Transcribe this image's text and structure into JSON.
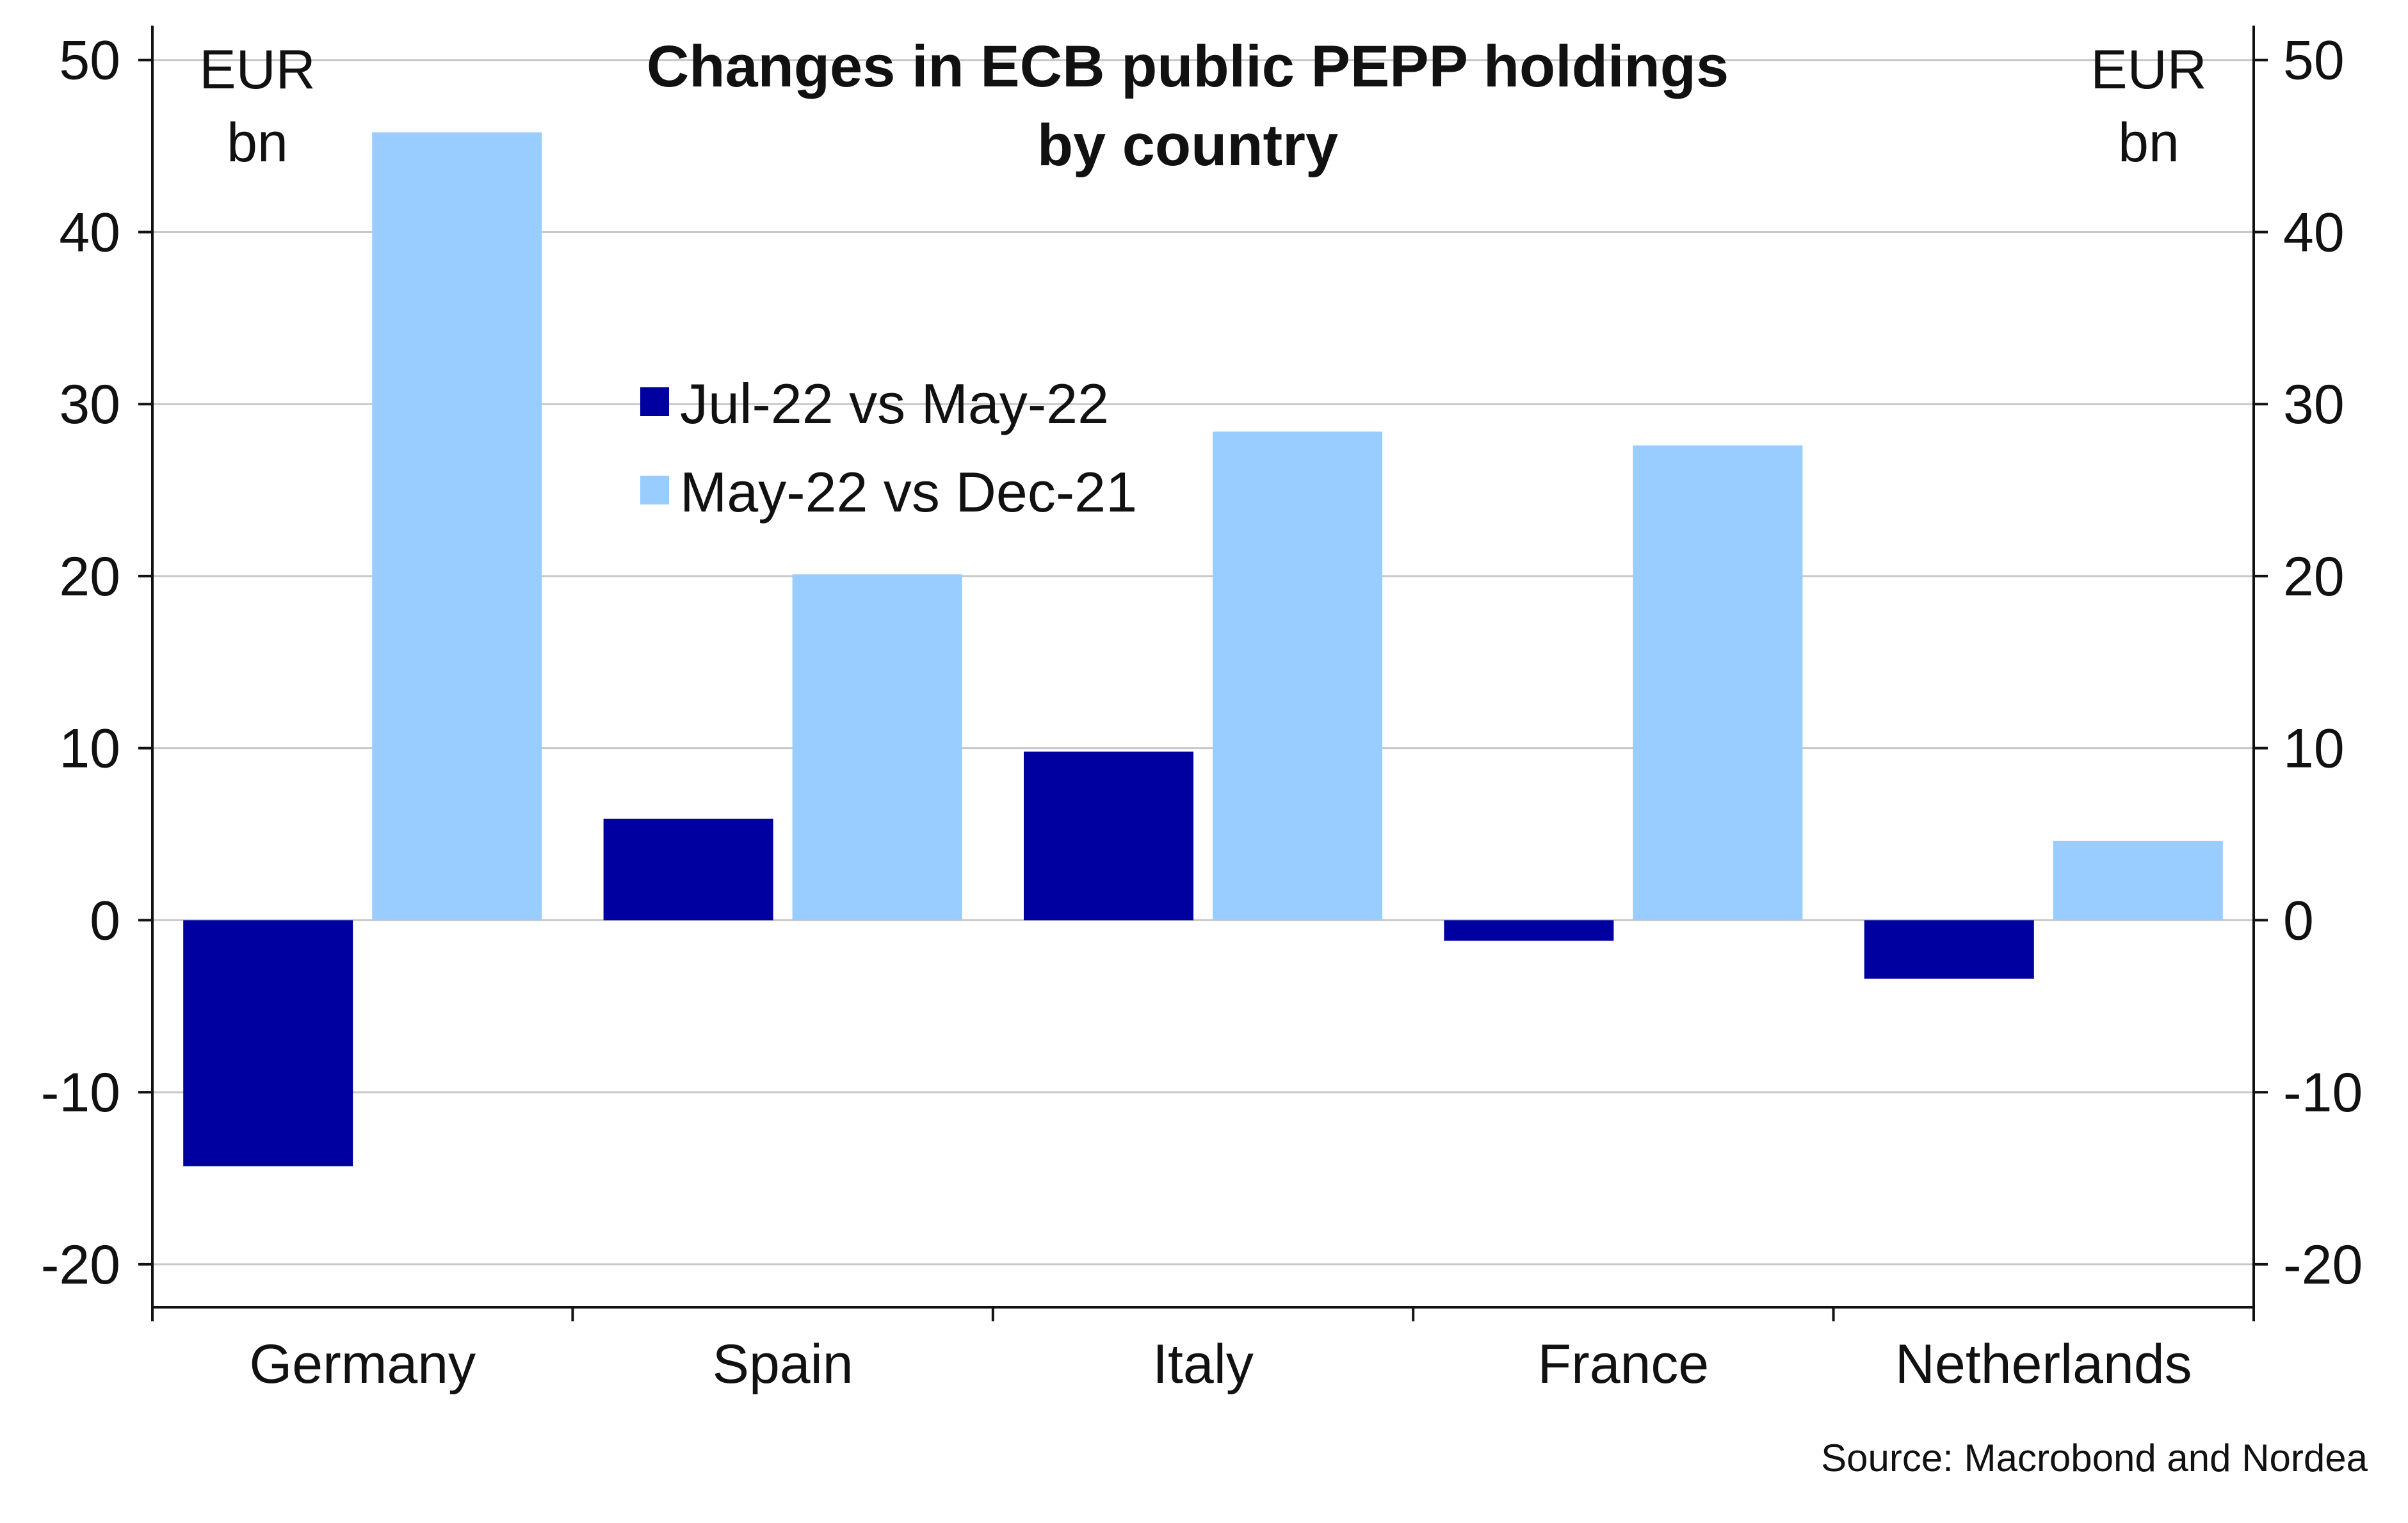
{
  "chart_data": {
    "type": "bar",
    "title_lines": [
      "Changes in ECB public PEPP holdings",
      "by country"
    ],
    "unit_left": [
      "EUR",
      "bn"
    ],
    "unit_right": [
      "EUR",
      "bn"
    ],
    "categories": [
      "Germany",
      "Spain",
      "Italy",
      "France",
      "Netherlands"
    ],
    "series": [
      {
        "name": "Jul-22 vs May-22",
        "color": "#0000a0",
        "values": [
          -14.3,
          5.9,
          9.8,
          -1.2,
          -3.4
        ]
      },
      {
        "name": "May-22 vs Dec-21",
        "color": "#99ccff",
        "values": [
          45.8,
          20.1,
          28.4,
          27.6,
          4.6
        ]
      }
    ],
    "y_ticks": [
      -20,
      -10,
      0,
      10,
      20,
      30,
      40,
      50
    ],
    "y_tick_labels": [
      "-20",
      "-10",
      "0",
      "10",
      "20",
      "30",
      "40",
      "50"
    ],
    "ylim": [
      -22.5,
      52
    ],
    "dual_y_axis": true,
    "grid": "horizontal",
    "legend_position": "center-left",
    "source": "Source: Macrobond and Nordea"
  }
}
